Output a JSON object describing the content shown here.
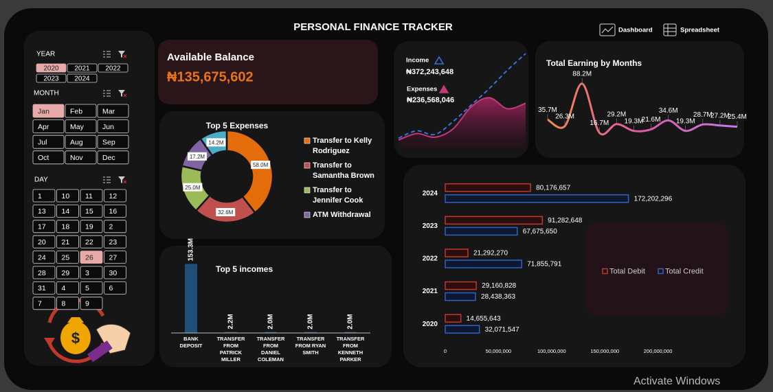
{
  "header": {
    "title": "PERSONAL FINANCE TRACKER",
    "nav": [
      "Dashboard",
      "Spreadsheet"
    ]
  },
  "filters": [
    {
      "label": "YEAR",
      "options": [
        "2020",
        "2021",
        "2022",
        "2023",
        "2024"
      ],
      "selected": 0
    },
    {
      "label": "MONTH",
      "options": [
        "Jan",
        "Feb",
        "Mar",
        "Apr",
        "May",
        "Jun",
        "Jul",
        "Aug",
        "Sep",
        "Oct",
        "Nov",
        "Dec"
      ],
      "selected": 0
    },
    {
      "label": "DAY",
      "options": [
        "1",
        "10",
        "11",
        "12",
        "13",
        "14",
        "15",
        "16",
        "17",
        "18",
        "19",
        "2",
        "20",
        "21",
        "22",
        "23",
        "24",
        "25",
        "26",
        "27",
        "28",
        "29",
        "3",
        "30",
        "31",
        "4",
        "5",
        "6",
        "7",
        "8",
        "9"
      ],
      "selected": 18
    }
  ],
  "balance": {
    "label": "Available Balance",
    "value": "₦135,675,602"
  },
  "watermark": "Activate Windows",
  "chart_data": [
    {
      "type": "pie",
      "title": "Top 5 Expenses",
      "donut": true,
      "categories": [
        "Transfer to Kelly Rodriguez",
        "Transfer to Samantha Brown",
        "Transfer to Jennifer Cook",
        "ATM Withdrawal",
        null
      ],
      "values": [
        58.0,
        32.6,
        25.0,
        17.2,
        14.2
      ],
      "value_labels": [
        "58.0M",
        "32.6M",
        "25.0M",
        "17.2M",
        "14.2M"
      ],
      "colors": [
        "#e46c0a",
        "#c0504d",
        "#9bbb59",
        "#8064a2",
        "#4bacc6"
      ]
    },
    {
      "type": "line",
      "ylim": [
        0,
        100
      ],
      "series": [
        {
          "name": "Income",
          "total": "₦372,243,648",
          "color": "#3b6fd9",
          "dashed": true,
          "values": [
            8,
            16,
            12,
            26,
            44,
            62,
            82,
            100
          ]
        },
        {
          "name": "Expenses",
          "total": "₦236,568,046",
          "color": "#c2397a",
          "area": true,
          "values": [
            6,
            13,
            9,
            18,
            42,
            52,
            40,
            46
          ]
        }
      ]
    },
    {
      "type": "line",
      "title": "Total Earning by Months",
      "ylim": [
        0,
        100
      ],
      "series": [
        {
          "color": "#d66cd3",
          "values": [
            35.7,
            26.3,
            88.2,
            16.7,
            29.2,
            19.3,
            21.6,
            34.6,
            19.3,
            28.7,
            27.2,
            25.4
          ],
          "value_labels": [
            "35.7M",
            "26.3M",
            "88.2M",
            "16.7M",
            "29.2M",
            "19.3M",
            "21.6M",
            "34.6M",
            "19.3M",
            "28.7M",
            "27.2M",
            "25.4M"
          ]
        }
      ]
    },
    {
      "type": "bar",
      "title": "Top 5 incomes",
      "orientation": "vertical",
      "color": "#1f4e79",
      "ylim": [
        0,
        160
      ],
      "categories": [
        "BANK DEPOSIT",
        "TRANSFER FROM PATRICK MILLER",
        "TRANSFER FROM DANIEL COLEMAN",
        "TRANSFER FROM RYAN SMITH",
        "TRANSFER FROM KENNETH PARKER"
      ],
      "values": [
        153.3,
        2.2,
        2.0,
        2.0,
        2.0
      ],
      "value_labels": [
        "153.3M",
        "2.2M",
        "2.0M",
        "2.0M",
        "2.0M"
      ]
    },
    {
      "type": "bar",
      "orientation": "horizontal",
      "legend": "right",
      "grid": false,
      "categories": [
        "2024",
        "2023",
        "2022",
        "2021",
        "2020"
      ],
      "xlim": [
        0,
        250000000
      ],
      "xticks": [
        0,
        {
          "value": 50000000,
          "label": "50,000,000"
        },
        {
          "value": 100000000,
          "label": "100,000,000"
        },
        {
          "value": 150000000,
          "label": "150,000,000"
        },
        {
          "value": 200000000,
          "label": "200,000,000"
        }
      ],
      "series": [
        {
          "name": "Total Debit",
          "color": "#c0392b",
          "values": [
            80176657,
            91282648,
            21292270,
            29160828,
            14655643
          ],
          "value_labels": [
            "80,176,657",
            "91,282,648",
            "21,292,270",
            "29,160,828",
            "14,655,643"
          ]
        },
        {
          "name": "Total Credit",
          "color": "#2f62c0",
          "values": [
            172202296,
            67675650,
            71855791,
            28438363,
            32071547
          ],
          "value_labels": [
            "172,202,296",
            "67,675,650",
            "71,855,791",
            "28,438,363",
            "32,071,547"
          ]
        }
      ]
    }
  ]
}
